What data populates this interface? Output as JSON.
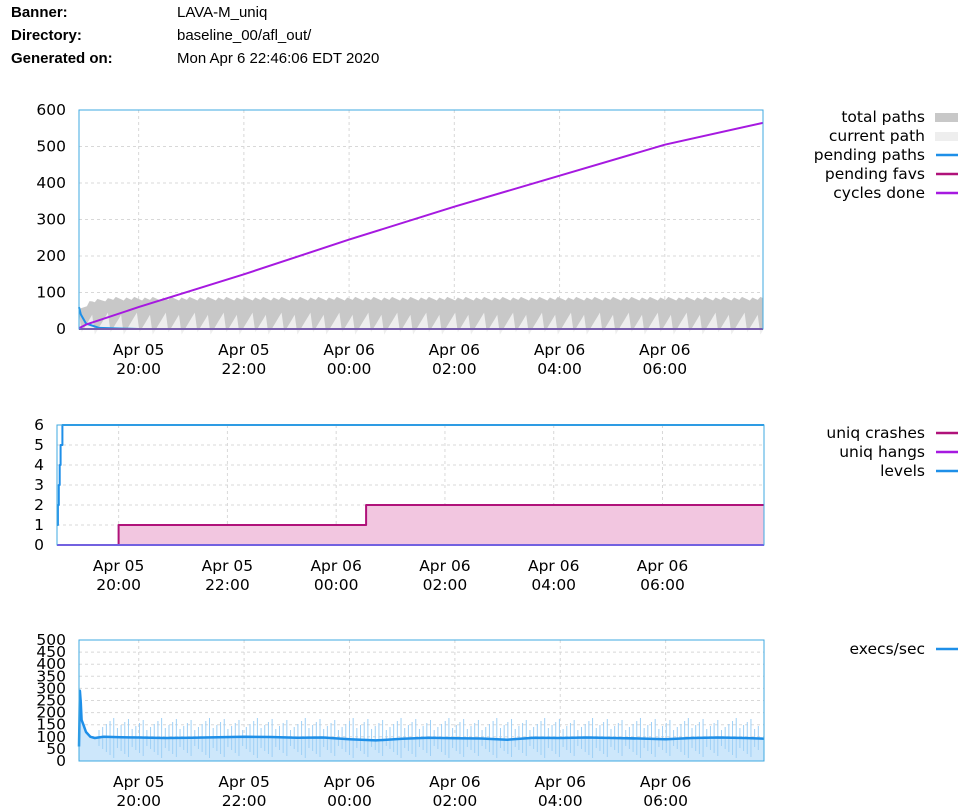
{
  "header": {
    "banner_label": "Banner:",
    "banner_value": "LAVA-M_uniq",
    "directory_label": "Directory:",
    "directory_value": "baseline_00/afl_out/",
    "generated_label": "Generated on:",
    "generated_value": "Mon Apr 6 22:46:06 EDT 2020"
  },
  "colors": {
    "frame": "#3fa9e0",
    "grid": "#d8d8d8",
    "total_paths": "#c8c8c8",
    "current_path": "#eeeeee",
    "pending_paths": "#1e8fe8",
    "pending_favs": "#b0127a",
    "cycles_done": "#a619e0",
    "uniq_crashes": "#b0127a",
    "uniq_crashes_fill": "#f2c6e0",
    "uniq_hangs": "#a619e0",
    "levels": "#1e8fe8",
    "execs": "#1e8fe8",
    "execs_fill": "#cde7fb"
  },
  "chart_data": [
    {
      "type": "area",
      "xlim": [
        "Apr 05 18:52",
        "Apr 06 07:52"
      ],
      "ylim": [
        0,
        600
      ],
      "y_ticks": [
        "600",
        "500",
        "400",
        "300",
        "200",
        "100",
        "0"
      ],
      "x_ticks": [
        {
          "day": "Apr 05",
          "time": "20:00"
        },
        {
          "day": "Apr 05",
          "time": "22:00"
        },
        {
          "day": "Apr 06",
          "time": "00:00"
        },
        {
          "day": "Apr 06",
          "time": "02:00"
        },
        {
          "day": "Apr 06",
          "time": "04:00"
        },
        {
          "day": "Apr 06",
          "time": "06:00"
        }
      ],
      "legend": [
        "total paths",
        "current path",
        "pending paths",
        "pending favs",
        "cycles done"
      ],
      "series": [
        {
          "name": "total paths",
          "x": [
            "Apr 05 18:52",
            "Apr 05 19:05",
            "Apr 05 19:30",
            "Apr 06 07:52"
          ],
          "values": [
            55,
            80,
            88,
            88
          ]
        },
        {
          "name": "current path",
          "x": [
            "Apr 05 18:52",
            "Apr 06 07:52"
          ],
          "values": [
            45,
            45
          ]
        },
        {
          "name": "pending paths",
          "x": [
            "Apr 05 18:52",
            "Apr 05 18:54",
            "Apr 05 19:00",
            "Apr 05 19:15",
            "Apr 05 20:00",
            "Apr 06 07:52"
          ],
          "values": [
            60,
            40,
            15,
            3,
            0,
            0
          ]
        },
        {
          "name": "pending favs",
          "x": [
            "Apr 05 18:52",
            "Apr 06 07:52"
          ],
          "values": [
            0,
            0
          ]
        },
        {
          "name": "cycles done",
          "x": [
            "Apr 05 18:52",
            "Apr 05 19:00",
            "Apr 05 20:00",
            "Apr 05 22:00",
            "Apr 06 00:00",
            "Apr 06 02:00",
            "Apr 06 04:00",
            "Apr 06 06:00",
            "Apr 06 07:52"
          ],
          "values": [
            2,
            12,
            60,
            150,
            245,
            335,
            420,
            505,
            565
          ]
        }
      ]
    },
    {
      "type": "line",
      "xlim": [
        "Apr 05 18:52",
        "Apr 06 07:52"
      ],
      "ylim": [
        0,
        6
      ],
      "y_ticks": [
        "6",
        "5",
        "4",
        "3",
        "2",
        "1",
        "0"
      ],
      "x_ticks": [
        {
          "day": "Apr 05",
          "time": "20:00"
        },
        {
          "day": "Apr 05",
          "time": "22:00"
        },
        {
          "day": "Apr 06",
          "time": "00:00"
        },
        {
          "day": "Apr 06",
          "time": "02:00"
        },
        {
          "day": "Apr 06",
          "time": "04:00"
        },
        {
          "day": "Apr 06",
          "time": "06:00"
        }
      ],
      "legend": [
        "uniq crashes",
        "uniq hangs",
        "levels"
      ],
      "series": [
        {
          "name": "uniq crashes",
          "x": [
            "Apr 05 18:52",
            "Apr 05 20:00",
            "Apr 06 00:33",
            "Apr 06 07:52"
          ],
          "values": [
            0,
            1,
            2,
            2
          ],
          "step": true
        },
        {
          "name": "uniq hangs",
          "x": [
            "Apr 05 18:52",
            "Apr 06 07:52"
          ],
          "values": [
            0,
            0
          ]
        },
        {
          "name": "levels",
          "x": [
            "Apr 05 18:52",
            "Apr 05 18:53",
            "Apr 05 18:54",
            "Apr 05 18:55",
            "Apr 05 18:56",
            "Apr 05 18:58",
            "Apr 06 07:52"
          ],
          "values": [
            1,
            2,
            3,
            4,
            5,
            6,
            6
          ],
          "step": true
        }
      ]
    },
    {
      "type": "area",
      "xlim": [
        "Apr 05 18:52",
        "Apr 06 07:52"
      ],
      "ylim": [
        0,
        500
      ],
      "y_ticks": [
        "500",
        "450",
        "400",
        "350",
        "300",
        "250",
        "200",
        "150",
        "100",
        "50",
        "0"
      ],
      "x_ticks": [
        {
          "day": "Apr 05",
          "time": "20:00"
        },
        {
          "day": "Apr 05",
          "time": "22:00"
        },
        {
          "day": "Apr 06",
          "time": "00:00"
        },
        {
          "day": "Apr 06",
          "time": "02:00"
        },
        {
          "day": "Apr 06",
          "time": "04:00"
        },
        {
          "day": "Apr 06",
          "time": "06:00"
        }
      ],
      "legend": [
        "execs/sec"
      ],
      "series": [
        {
          "name": "execs/sec",
          "x": [
            "Apr 05 18:52",
            "Apr 05 18:53",
            "Apr 05 18:54",
            "Apr 05 18:55",
            "Apr 05 18:57",
            "Apr 05 19:00",
            "Apr 05 19:05",
            "Apr 05 19:10",
            "Apr 05 19:20",
            "Apr 05 19:40",
            "Apr 05 20:00",
            "Apr 05 20:30",
            "Apr 05 21:00",
            "Apr 05 21:30",
            "Apr 05 22:00",
            "Apr 05 22:30",
            "Apr 05 23:00",
            "Apr 05 23:30",
            "Apr 06 00:00",
            "Apr 06 00:30",
            "Apr 06 01:00",
            "Apr 06 01:30",
            "Apr 06 02:00",
            "Apr 06 02:30",
            "Apr 06 03:00",
            "Apr 06 03:30",
            "Apr 06 04:00",
            "Apr 06 04:30",
            "Apr 06 05:00",
            "Apr 06 05:30",
            "Apr 06 06:00",
            "Apr 06 06:30",
            "Apr 06 07:00",
            "Apr 06 07:30",
            "Apr 06 07:52"
          ],
          "values": [
            60,
            290,
            240,
            170,
            150,
            120,
            100,
            95,
            100,
            98,
            97,
            95,
            96,
            98,
            100,
            99,
            96,
            97,
            90,
            85,
            92,
            96,
            94,
            93,
            88,
            96,
            95,
            97,
            95,
            93,
            90,
            95,
            97,
            95,
            92
          ]
        }
      ]
    }
  ]
}
